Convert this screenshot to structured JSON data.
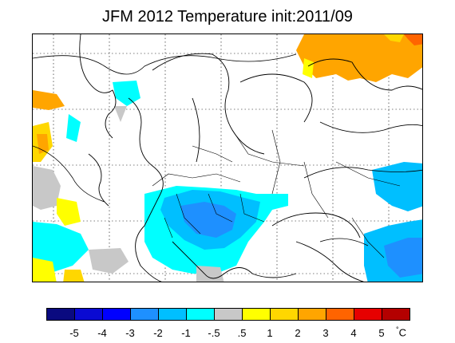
{
  "title": "JFM 2012 Temperature init:2011/09",
  "legend": {
    "colors": [
      "#0a0a80",
      "#0a0ad2",
      "#0000ff",
      "#1e90ff",
      "#00bfff",
      "#00ffff",
      "#c8c8c8",
      "#ffff00",
      "#ffd700",
      "#ffa500",
      "#ff6400",
      "#e60000",
      "#b40000"
    ],
    "labels": [
      "-5",
      "-4",
      "-3",
      "-2",
      "-1",
      "-.5",
      ".5",
      "1",
      "2",
      "3",
      "4",
      "5"
    ],
    "unit_symbol": "°",
    "unit_letter": "C"
  }
}
